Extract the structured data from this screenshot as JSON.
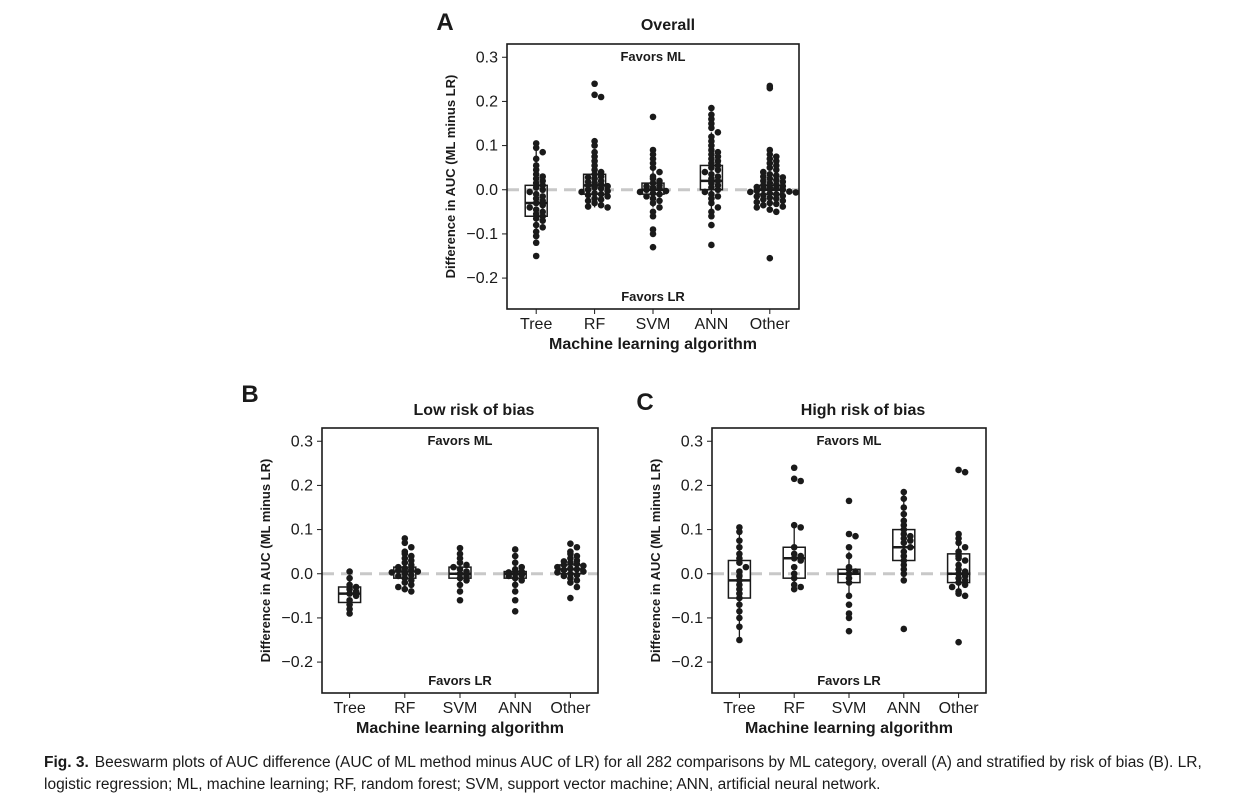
{
  "caption": {
    "label": "Fig. 3.",
    "text": "Beeswarm plots of AUC difference (AUC of ML method minus AUC of LR) for all 282 comparisons by ML category, overall (A) and stratified by risk of bias (B). LR, logistic regression; ML, machine learning; RF, random forest; SVM, support vector machine; ANN, artificial neural network."
  },
  "colors": {
    "points": "#1a1a1a",
    "reference_line": "#c8c8c8",
    "box": "#1a1a1a"
  },
  "chart_data": [
    {
      "id": "A",
      "type": "beeswarm-box",
      "letter": "A",
      "title": "Overall",
      "xlabel": "Machine learning algorithm",
      "ylabel": "Difference in AUC (ML minus LR)",
      "ylim": [
        -0.27,
        0.33
      ],
      "yticks": [
        -0.2,
        -0.1,
        0.0,
        0.1,
        0.2,
        0.3
      ],
      "ytick_labels": [
        "−0.2",
        "−0.1",
        "0.0",
        "0.1",
        "0.2",
        "0.3"
      ],
      "reference_y": 0,
      "annotation_top": "Favors ML",
      "annotation_bottom": "Favors LR",
      "categories": [
        "Tree",
        "RF",
        "SVM",
        "ANN",
        "Other"
      ],
      "boxes": [
        {
          "q1": -0.06,
          "median": -0.03,
          "q3": 0.01,
          "whisker_low": -0.1,
          "whisker_high": 0.1
        },
        {
          "q1": -0.01,
          "median": 0.01,
          "q3": 0.035,
          "whisker_low": -0.04,
          "whisker_high": 0.08
        },
        {
          "q1": -0.01,
          "median": 0.0,
          "q3": 0.015,
          "whisker_low": -0.04,
          "whisker_high": 0.05
        },
        {
          "q1": 0.0,
          "median": 0.02,
          "q3": 0.055,
          "whisker_low": -0.05,
          "whisker_high": 0.13
        },
        {
          "q1": -0.01,
          "median": 0.0,
          "q3": 0.01,
          "whisker_low": -0.04,
          "whisker_high": 0.04
        }
      ],
      "points": [
        [
          0.105,
          0.095,
          0.085,
          0.07,
          0.055,
          0.045,
          0.035,
          0.03,
          0.025,
          0.02,
          0.015,
          0.01,
          0.005,
          0.0,
          -0.005,
          -0.01,
          -0.015,
          -0.02,
          -0.025,
          -0.03,
          -0.035,
          -0.04,
          -0.045,
          -0.05,
          -0.055,
          -0.06,
          -0.065,
          -0.07,
          -0.08,
          -0.085,
          -0.095,
          -0.105,
          -0.12,
          -0.15
        ],
        [
          0.24,
          0.215,
          0.21,
          0.11,
          0.1,
          0.085,
          0.075,
          0.065,
          0.055,
          0.045,
          0.04,
          0.035,
          0.03,
          0.028,
          0.025,
          0.02,
          0.018,
          0.015,
          0.012,
          0.01,
          0.008,
          0.005,
          0.003,
          0.0,
          -0.003,
          -0.005,
          -0.008,
          -0.01,
          -0.012,
          -0.015,
          -0.02,
          -0.022,
          -0.025,
          -0.03,
          -0.035,
          -0.038,
          -0.04
        ],
        [
          0.165,
          0.09,
          0.08,
          0.07,
          0.06,
          0.05,
          0.04,
          0.03,
          0.025,
          0.02,
          0.015,
          0.01,
          0.008,
          0.005,
          0.003,
          0.0,
          -0.003,
          -0.005,
          -0.008,
          -0.01,
          -0.015,
          -0.02,
          -0.025,
          -0.03,
          -0.04,
          -0.05,
          -0.06,
          -0.09,
          -0.1,
          -0.13
        ],
        [
          0.185,
          0.17,
          0.16,
          0.15,
          0.14,
          0.13,
          0.12,
          0.11,
          0.1,
          0.09,
          0.085,
          0.08,
          0.075,
          0.07,
          0.065,
          0.06,
          0.055,
          0.05,
          0.045,
          0.04,
          0.035,
          0.03,
          0.025,
          0.02,
          0.015,
          0.01,
          0.005,
          0.0,
          -0.005,
          -0.01,
          -0.015,
          -0.02,
          -0.03,
          -0.04,
          -0.05,
          -0.06,
          -0.08,
          -0.125
        ],
        [
          0.235,
          0.23,
          0.09,
          0.08,
          0.075,
          0.07,
          0.065,
          0.06,
          0.055,
          0.05,
          0.045,
          0.04,
          0.035,
          0.032,
          0.03,
          0.028,
          0.025,
          0.022,
          0.02,
          0.018,
          0.015,
          0.012,
          0.01,
          0.008,
          0.006,
          0.005,
          0.004,
          0.002,
          0.0,
          -0.002,
          -0.004,
          -0.005,
          -0.006,
          -0.008,
          -0.01,
          -0.012,
          -0.014,
          -0.015,
          -0.018,
          -0.02,
          -0.022,
          -0.025,
          -0.028,
          -0.03,
          -0.032,
          -0.035,
          -0.038,
          -0.04,
          -0.045,
          -0.05,
          -0.155
        ]
      ]
    },
    {
      "id": "B",
      "type": "beeswarm-box",
      "letter": "B",
      "title": "Low risk of bias",
      "xlabel": "Machine learning algorithm",
      "ylabel": "Difference in AUC (ML minus LR)",
      "ylim": [
        -0.27,
        0.33
      ],
      "yticks": [
        -0.2,
        -0.1,
        0.0,
        0.1,
        0.2,
        0.3
      ],
      "ytick_labels": [
        "−0.2",
        "−0.1",
        "0.0",
        "0.1",
        "0.2",
        "0.3"
      ],
      "reference_y": 0,
      "annotation_top": "Favors ML",
      "annotation_bottom": "Favors LR",
      "categories": [
        "Tree",
        "RF",
        "SVM",
        "ANN",
        "Other"
      ],
      "boxes": [
        {
          "q1": -0.065,
          "median": -0.045,
          "q3": -0.03,
          "whisker_low": -0.09,
          "whisker_high": -0.01
        },
        {
          "q1": -0.01,
          "median": 0.005,
          "q3": 0.015,
          "whisker_low": -0.04,
          "whisker_high": 0.05
        },
        {
          "q1": -0.01,
          "median": 0.0,
          "q3": 0.015,
          "whisker_low": -0.03,
          "whisker_high": 0.04
        },
        {
          "q1": -0.01,
          "median": 0.0,
          "q3": 0.005,
          "whisker_low": -0.02,
          "whisker_high": 0.02
        },
        {
          "q1": 0.0,
          "median": 0.01,
          "q3": 0.02,
          "whisker_low": -0.02,
          "whisker_high": 0.04
        }
      ],
      "points": [
        [
          0.005,
          -0.01,
          -0.025,
          -0.03,
          -0.035,
          -0.04,
          -0.045,
          -0.05,
          -0.06,
          -0.07,
          -0.08,
          -0.09
        ],
        [
          0.08,
          0.07,
          0.06,
          0.05,
          0.045,
          0.04,
          0.035,
          0.03,
          0.025,
          0.02,
          0.015,
          0.012,
          0.01,
          0.008,
          0.005,
          0.003,
          0.0,
          -0.003,
          -0.005,
          -0.01,
          -0.015,
          -0.02,
          -0.025,
          -0.03,
          -0.035,
          -0.04
        ],
        [
          0.058,
          0.045,
          0.035,
          0.025,
          0.02,
          0.015,
          0.01,
          0.005,
          0.0,
          -0.005,
          -0.01,
          -0.015,
          -0.025,
          -0.04,
          -0.06
        ],
        [
          0.055,
          0.04,
          0.025,
          0.015,
          0.01,
          0.005,
          0.003,
          0.0,
          -0.003,
          -0.005,
          -0.01,
          -0.015,
          -0.025,
          -0.04,
          -0.06,
          -0.085
        ],
        [
          0.068,
          0.06,
          0.05,
          0.045,
          0.04,
          0.035,
          0.03,
          0.028,
          0.025,
          0.022,
          0.02,
          0.018,
          0.015,
          0.012,
          0.01,
          0.008,
          0.005,
          0.003,
          0.0,
          -0.003,
          -0.005,
          -0.01,
          -0.015,
          -0.02,
          -0.03,
          -0.055
        ]
      ]
    },
    {
      "id": "C",
      "type": "beeswarm-box",
      "letter": "C",
      "title": "High risk of bias",
      "xlabel": "Machine learning algorithm",
      "ylabel": "Difference in AUC (ML minus LR)",
      "ylim": [
        -0.27,
        0.33
      ],
      "yticks": [
        -0.2,
        -0.1,
        0.0,
        0.1,
        0.2,
        0.3
      ],
      "ytick_labels": [
        "−0.2",
        "−0.1",
        "0.0",
        "0.1",
        "0.2",
        "0.3"
      ],
      "reference_y": 0,
      "annotation_top": "Favors ML",
      "annotation_bottom": "Favors LR",
      "categories": [
        "Tree",
        "RF",
        "SVM",
        "ANN",
        "Other"
      ],
      "boxes": [
        {
          "q1": -0.055,
          "median": -0.015,
          "q3": 0.03,
          "whisker_low": -0.15,
          "whisker_high": 0.1
        },
        {
          "q1": -0.01,
          "median": 0.035,
          "q3": 0.06,
          "whisker_low": -0.04,
          "whisker_high": 0.105
        },
        {
          "q1": -0.02,
          "median": 0.0,
          "q3": 0.01,
          "whisker_low": -0.05,
          "whisker_high": 0.05
        },
        {
          "q1": 0.03,
          "median": 0.06,
          "q3": 0.1,
          "whisker_low": -0.02,
          "whisker_high": 0.18
        },
        {
          "q1": -0.02,
          "median": 0.0,
          "q3": 0.045,
          "whisker_low": -0.05,
          "whisker_high": 0.09
        }
      ],
      "points": [
        [
          0.105,
          0.095,
          0.075,
          0.06,
          0.045,
          0.035,
          0.025,
          0.015,
          0.005,
          -0.005,
          -0.015,
          -0.025,
          -0.035,
          -0.045,
          -0.055,
          -0.07,
          -0.085,
          -0.1,
          -0.12,
          -0.15
        ],
        [
          0.24,
          0.215,
          0.21,
          0.11,
          0.105,
          0.06,
          0.045,
          0.04,
          0.035,
          0.03,
          0.015,
          0.0,
          -0.01,
          -0.025,
          -0.03,
          -0.035
        ],
        [
          0.165,
          0.09,
          0.085,
          0.06,
          0.04,
          0.015,
          0.01,
          0.005,
          0.0,
          -0.01,
          -0.02,
          -0.05,
          -0.07,
          -0.09,
          -0.1,
          -0.13
        ],
        [
          0.185,
          0.17,
          0.15,
          0.135,
          0.12,
          0.11,
          0.1,
          0.09,
          0.085,
          0.08,
          0.075,
          0.07,
          0.06,
          0.05,
          0.04,
          0.03,
          0.02,
          0.01,
          0.0,
          -0.015,
          -0.125
        ],
        [
          0.235,
          0.23,
          0.09,
          0.08,
          0.07,
          0.06,
          0.05,
          0.04,
          0.035,
          0.03,
          0.02,
          0.01,
          0.005,
          0.0,
          -0.005,
          -0.01,
          -0.015,
          -0.02,
          -0.025,
          -0.03,
          -0.04,
          -0.045,
          -0.05,
          -0.155
        ]
      ]
    }
  ]
}
